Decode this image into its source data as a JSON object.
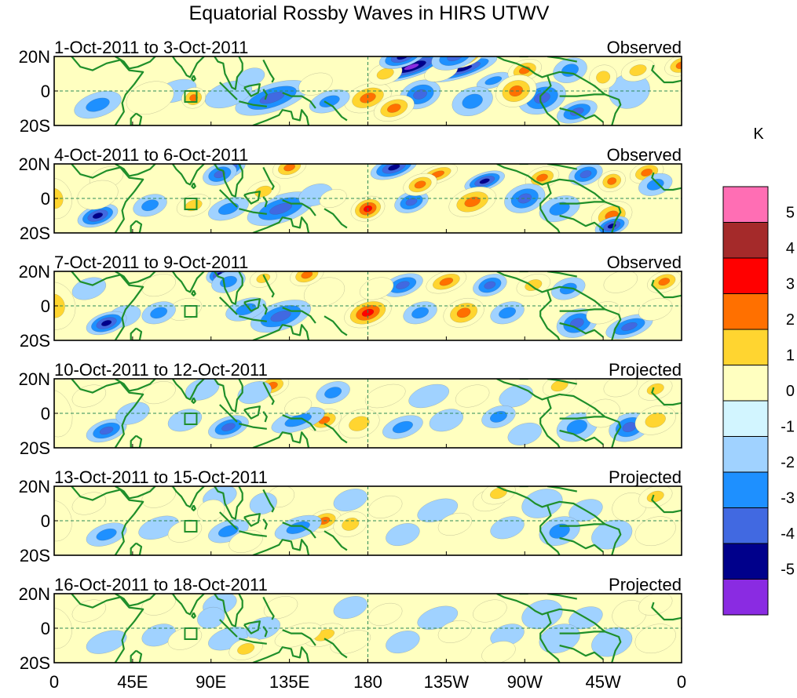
{
  "title": "Equatorial Rossby Waves in HIRS UTWV",
  "panels": [
    {
      "dates": "1-Oct-2011 to 3-Oct-2011",
      "status": "Observed"
    },
    {
      "dates": "4-Oct-2011 to 6-Oct-2011",
      "status": "Observed"
    },
    {
      "dates": "7-Oct-2011 to 9-Oct-2011",
      "status": "Observed"
    },
    {
      "dates": "10-Oct-2011 to 12-Oct-2011",
      "status": "Projected"
    },
    {
      "dates": "13-Oct-2011 to 15-Oct-2011",
      "status": "Projected"
    },
    {
      "dates": "16-Oct-2011 to 18-Oct-2011",
      "status": "Projected"
    }
  ],
  "lat_labels": [
    "20N",
    "0",
    "20S"
  ],
  "lon_labels": [
    "0",
    "45E",
    "90E",
    "135E",
    "180",
    "135W",
    "90W",
    "45W",
    "0"
  ],
  "colorbar": {
    "unit": "K",
    "ticks": [
      "5",
      "4",
      "3",
      "2",
      "1",
      "0",
      "-1",
      "-2",
      "-3",
      "-4",
      "-5"
    ],
    "colors": [
      "#ff6eb4",
      "#a52a2a",
      "#ff0000",
      "#ff7000",
      "#ffd530",
      "#ffffc0",
      "#d2f5ff",
      "#a0d2ff",
      "#1e90ff",
      "#4169e1",
      "#00008b",
      "#8a2be2"
    ]
  },
  "colors": {
    "land_outline": "#1f8f2a",
    "reference_line": "#2e8b57"
  },
  "anomaly_fields": [
    [
      [
        205,
        14,
        22,
        6,
        -5
      ],
      [
        235,
        13,
        20,
        5,
        -4
      ],
      [
        252,
        6,
        10,
        4,
        -2
      ],
      [
        180,
        -4,
        14,
        8,
        3
      ],
      [
        125,
        -4,
        22,
        8,
        -3
      ],
      [
        158,
        -6,
        12,
        6,
        -2
      ],
      [
        25,
        -8,
        14,
        7,
        -2
      ],
      [
        70,
        0,
        12,
        6,
        -1
      ],
      [
        100,
        -2,
        14,
        7,
        -1
      ],
      [
        113,
        8,
        8,
        5,
        -1
      ],
      [
        150,
        4,
        10,
        6,
        1
      ],
      [
        330,
        0,
        12,
        10,
        -1
      ],
      [
        80,
        -4,
        7,
        6,
        3
      ],
      [
        55,
        -4,
        14,
        9,
        1
      ],
      [
        360,
        15,
        10,
        6,
        3
      ],
      [
        210,
        -2,
        12,
        8,
        -3
      ],
      [
        240,
        -6,
        12,
        8,
        -2
      ],
      [
        280,
        -4,
        14,
        9,
        -3
      ],
      [
        300,
        -12,
        12,
        6,
        -3
      ],
      [
        296,
        12,
        10,
        7,
        -2
      ],
      [
        315,
        8,
        8,
        7,
        2
      ],
      [
        335,
        12,
        10,
        6,
        2
      ],
      [
        190,
        10,
        10,
        6,
        2
      ],
      [
        222,
        11,
        10,
        5,
        1
      ],
      [
        195,
        -10,
        12,
        7,
        3
      ],
      [
        270,
        12,
        10,
        6,
        3
      ],
      [
        265,
        0,
        12,
        9,
        3
      ],
      [
        200,
        20,
        14,
        6,
        -4
      ],
      [
        235,
        20,
        12,
        6,
        5
      ],
      [
        230,
        20,
        14,
        7,
        -3
      ]
    ],
    [
      [
        195,
        18,
        14,
        6,
        -4
      ],
      [
        220,
        14,
        12,
        5,
        3
      ],
      [
        247,
        10,
        12,
        5,
        -4
      ],
      [
        280,
        12,
        10,
        6,
        3
      ],
      [
        305,
        14,
        10,
        6,
        -3
      ],
      [
        320,
        10,
        8,
        6,
        3
      ],
      [
        340,
        15,
        10,
        6,
        3
      ],
      [
        345,
        8,
        10,
        6,
        -2
      ],
      [
        180,
        -6,
        10,
        7,
        4
      ],
      [
        205,
        -2,
        10,
        6,
        -3
      ],
      [
        240,
        -2,
        14,
        8,
        3
      ],
      [
        270,
        0,
        12,
        8,
        -3
      ],
      [
        290,
        -6,
        12,
        7,
        -2
      ],
      [
        320,
        -10,
        12,
        8,
        3
      ],
      [
        320,
        -16,
        10,
        5,
        -4
      ],
      [
        130,
        -6,
        20,
        8,
        -3
      ],
      [
        100,
        -6,
        12,
        6,
        -2
      ],
      [
        80,
        -4,
        10,
        6,
        2
      ],
      [
        55,
        -4,
        10,
        6,
        -2
      ],
      [
        25,
        -10,
        12,
        6,
        -4
      ],
      [
        120,
        4,
        10,
        6,
        2
      ],
      [
        100,
        18,
        10,
        6,
        -4
      ],
      [
        95,
        14,
        10,
        6,
        -3
      ],
      [
        150,
        2,
        10,
        6,
        -1
      ],
      [
        135,
        18,
        10,
        6,
        3
      ],
      [
        30,
        12,
        10,
        6,
        1
      ],
      [
        160,
        0,
        8,
        5,
        1
      ],
      [
        25,
        2,
        12,
        8,
        1
      ],
      [
        0,
        0,
        10,
        12,
        2
      ],
      [
        210,
        8,
        10,
        6,
        3
      ]
    ],
    [
      [
        180,
        -4,
        14,
        8,
        4
      ],
      [
        210,
        -4,
        10,
        6,
        -2
      ],
      [
        235,
        -4,
        12,
        8,
        3
      ],
      [
        260,
        -4,
        10,
        6,
        -2
      ],
      [
        200,
        12,
        12,
        6,
        -3
      ],
      [
        225,
        14,
        12,
        6,
        3
      ],
      [
        250,
        12,
        10,
        6,
        -3
      ],
      [
        275,
        12,
        10,
        6,
        2
      ],
      [
        295,
        10,
        10,
        6,
        -2
      ],
      [
        325,
        14,
        10,
        6,
        1
      ],
      [
        350,
        14,
        10,
        6,
        3
      ],
      [
        95,
        18,
        8,
        5,
        -4
      ],
      [
        100,
        14,
        10,
        6,
        -2
      ],
      [
        130,
        -6,
        18,
        8,
        -3
      ],
      [
        110,
        -2,
        12,
        6,
        -2
      ],
      [
        75,
        -2,
        10,
        6,
        1
      ],
      [
        60,
        -4,
        10,
        6,
        -2
      ],
      [
        40,
        -6,
        10,
        6,
        -1
      ],
      [
        30,
        -10,
        12,
        6,
        -4
      ],
      [
        155,
        8,
        12,
        8,
        1
      ],
      [
        145,
        18,
        10,
        6,
        3
      ],
      [
        120,
        16,
        8,
        5,
        2
      ],
      [
        300,
        -10,
        12,
        8,
        -3
      ],
      [
        330,
        -12,
        14,
        6,
        -3
      ],
      [
        315,
        -4,
        10,
        6,
        1
      ],
      [
        60,
        12,
        10,
        6,
        1
      ],
      [
        0,
        0,
        12,
        14,
        2
      ],
      [
        185,
        10,
        10,
        6,
        1
      ],
      [
        345,
        -2,
        10,
        6,
        1
      ],
      [
        20,
        10,
        10,
        6,
        -1
      ]
    ],
    [
      [
        155,
        -4,
        10,
        6,
        3
      ],
      [
        175,
        -6,
        12,
        8,
        2
      ],
      [
        140,
        -4,
        16,
        6,
        -2
      ],
      [
        100,
        -8,
        12,
        6,
        -3
      ],
      [
        75,
        -4,
        10,
        6,
        -1
      ],
      [
        30,
        -10,
        12,
        6,
        -3
      ],
      [
        45,
        0,
        10,
        6,
        -1
      ],
      [
        125,
        16,
        10,
        6,
        3
      ],
      [
        115,
        12,
        10,
        6,
        -1
      ],
      [
        160,
        12,
        10,
        6,
        -2
      ],
      [
        190,
        10,
        12,
        6,
        1
      ],
      [
        215,
        10,
        12,
        6,
        -1
      ],
      [
        240,
        10,
        10,
        6,
        1
      ],
      [
        265,
        10,
        10,
        6,
        -1
      ],
      [
        290,
        16,
        10,
        6,
        2
      ],
      [
        325,
        16,
        10,
        6,
        1
      ],
      [
        345,
        14,
        10,
        6,
        2
      ],
      [
        300,
        -8,
        12,
        8,
        -2
      ],
      [
        330,
        -8,
        12,
        8,
        -3
      ],
      [
        345,
        -4,
        12,
        8,
        2
      ],
      [
        200,
        -8,
        12,
        6,
        -2
      ],
      [
        225,
        -4,
        10,
        6,
        -1
      ],
      [
        255,
        -2,
        10,
        6,
        -2
      ],
      [
        0,
        0,
        10,
        14,
        1
      ],
      [
        20,
        10,
        10,
        6,
        1
      ],
      [
        60,
        12,
        10,
        6,
        1
      ],
      [
        85,
        14,
        10,
        6,
        -1
      ],
      [
        140,
        4,
        8,
        5,
        1
      ],
      [
        270,
        -12,
        10,
        6,
        -1
      ],
      [
        315,
        0,
        10,
        8,
        1
      ]
    ],
    [
      [
        155,
        0,
        10,
        6,
        3
      ],
      [
        170,
        -2,
        10,
        7,
        2
      ],
      [
        140,
        -4,
        14,
        6,
        -2
      ],
      [
        100,
        -6,
        12,
        6,
        -2
      ],
      [
        60,
        -4,
        12,
        6,
        -1
      ],
      [
        30,
        -8,
        12,
        6,
        -2
      ],
      [
        20,
        10,
        10,
        6,
        1
      ],
      [
        60,
        14,
        10,
        6,
        1
      ],
      [
        95,
        14,
        10,
        6,
        -1
      ],
      [
        130,
        14,
        8,
        6,
        1
      ],
      [
        120,
        10,
        8,
        6,
        -1
      ],
      [
        190,
        8,
        10,
        6,
        1
      ],
      [
        220,
        6,
        12,
        6,
        -1
      ],
      [
        250,
        12,
        10,
        6,
        1
      ],
      [
        280,
        10,
        12,
        8,
        -1
      ],
      [
        305,
        6,
        10,
        6,
        -1
      ],
      [
        330,
        8,
        10,
        8,
        1
      ],
      [
        345,
        14,
        10,
        6,
        2
      ],
      [
        290,
        -6,
        12,
        8,
        -2
      ],
      [
        320,
        -8,
        12,
        8,
        -1
      ],
      [
        345,
        -6,
        12,
        8,
        1
      ],
      [
        200,
        -8,
        10,
        6,
        -1
      ],
      [
        230,
        -2,
        10,
        6,
        1
      ],
      [
        260,
        -4,
        10,
        6,
        -1
      ],
      [
        0,
        0,
        10,
        12,
        1
      ],
      [
        170,
        12,
        10,
        6,
        -1
      ],
      [
        75,
        -6,
        10,
        6,
        1
      ],
      [
        110,
        -12,
        10,
        6,
        1
      ],
      [
        255,
        16,
        10,
        6,
        2
      ],
      [
        90,
        6,
        8,
        6,
        1
      ]
    ],
    [
      [
        155,
        -4,
        12,
        6,
        2
      ],
      [
        170,
        -8,
        12,
        6,
        1
      ],
      [
        140,
        -4,
        14,
        6,
        1
      ],
      [
        100,
        -6,
        12,
        6,
        -1
      ],
      [
        60,
        -4,
        10,
        6,
        -1
      ],
      [
        30,
        -8,
        12,
        6,
        -1
      ],
      [
        20,
        10,
        10,
        6,
        1
      ],
      [
        60,
        14,
        10,
        6,
        1
      ],
      [
        95,
        14,
        10,
        6,
        -1
      ],
      [
        130,
        12,
        10,
        6,
        1
      ],
      [
        120,
        0,
        10,
        6,
        -1
      ],
      [
        190,
        8,
        10,
        6,
        1
      ],
      [
        220,
        6,
        12,
        6,
        -1
      ],
      [
        250,
        10,
        10,
        6,
        1
      ],
      [
        280,
        8,
        12,
        8,
        -1
      ],
      [
        305,
        6,
        10,
        6,
        -1
      ],
      [
        330,
        8,
        10,
        8,
        1
      ],
      [
        345,
        14,
        10,
        6,
        1
      ],
      [
        290,
        -6,
        12,
        8,
        -1
      ],
      [
        320,
        -8,
        12,
        8,
        -1
      ],
      [
        345,
        -6,
        12,
        8,
        1
      ],
      [
        200,
        -8,
        10,
        6,
        -1
      ],
      [
        230,
        -2,
        10,
        6,
        1
      ],
      [
        260,
        -4,
        10,
        6,
        -1
      ],
      [
        0,
        0,
        10,
        12,
        1
      ],
      [
        170,
        12,
        10,
        6,
        -1
      ],
      [
        75,
        -6,
        10,
        6,
        1
      ],
      [
        110,
        -12,
        10,
        6,
        2
      ],
      [
        255,
        -14,
        10,
        6,
        1
      ],
      [
        90,
        6,
        8,
        6,
        -1
      ]
    ]
  ]
}
